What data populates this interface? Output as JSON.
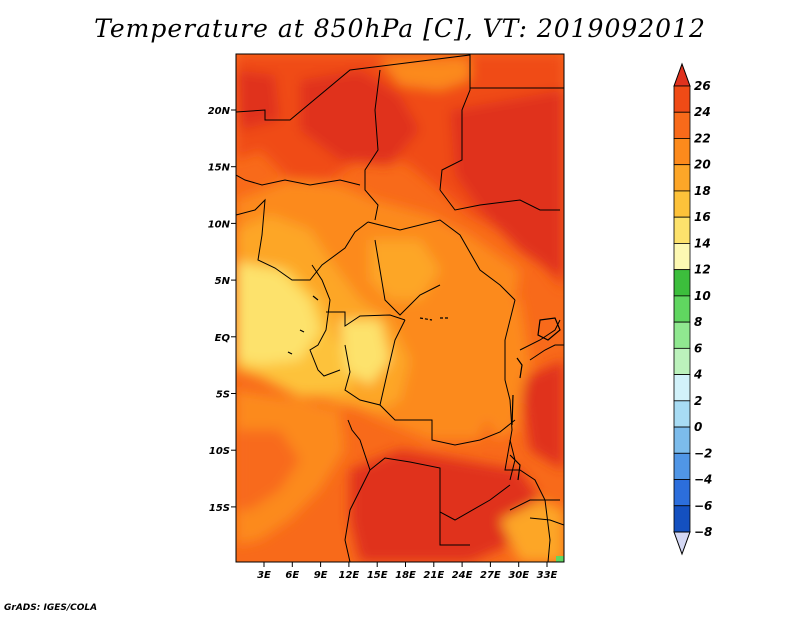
{
  "title": "Temperature at 850hPa [C], VT: 2019092012",
  "footer": "GrADS: IGES/COLA",
  "chart_data": {
    "type": "heatmap",
    "title": "Temperature at 850hPa [C], VT: 2019092012",
    "variable": "Temperature at 850hPa",
    "units": "C",
    "valid_time": "2019092012",
    "x_ticks": [
      "3E",
      "6E",
      "9E",
      "12E",
      "15E",
      "18E",
      "21E",
      "24E",
      "27E",
      "30E",
      "33E"
    ],
    "y_ticks": [
      "20N",
      "15N",
      "10N",
      "5N",
      "EQ",
      "5S",
      "10S",
      "15S"
    ],
    "xlim": [
      0,
      35
    ],
    "ylim": [
      -20,
      25
    ],
    "colorbar": {
      "levels": [
        26,
        24,
        22,
        20,
        18,
        16,
        14,
        12,
        10,
        8,
        6,
        4,
        2,
        0,
        -2,
        -4,
        -6,
        -8
      ],
      "colors": [
        "#e0321e",
        "#f04b16",
        "#f86a1a",
        "#fc8a1c",
        "#fda628",
        "#fdc23a",
        "#fde26c",
        "#fdf8b2",
        "#3cbe3c",
        "#60d660",
        "#90e890",
        "#bcf2bc",
        "#d2f2fa",
        "#a8dcf4",
        "#7cbcec",
        "#5096e6",
        "#2c6edc",
        "#1450c0",
        "#0a2a96",
        "#08006e",
        "#d4d8f4"
      ]
    }
  }
}
